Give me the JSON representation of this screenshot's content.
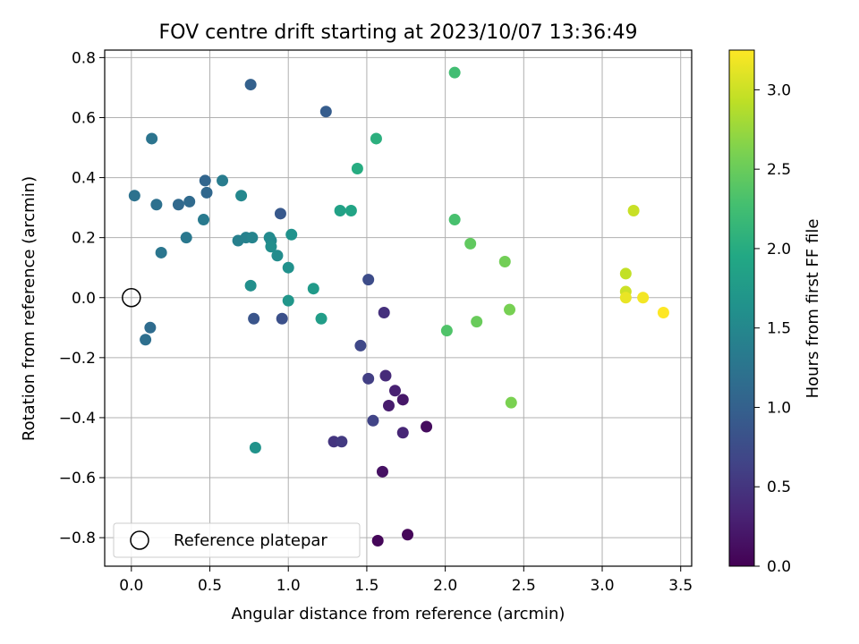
{
  "chart_data": {
    "type": "scatter",
    "title": "FOV centre drift starting at 2023/10/07 13:36:49",
    "xlabel": "Angular distance from reference (arcmin)",
    "ylabel": "Rotation from reference (arcmin)",
    "xlim": [
      -0.17,
      3.57
    ],
    "ylim": [
      -0.895,
      0.825
    ],
    "xticks": [
      0.0,
      0.5,
      1.0,
      1.5,
      2.0,
      2.5,
      3.0,
      3.5
    ],
    "xtick_labels": [
      "0.0",
      "0.5",
      "1.0",
      "1.5",
      "2.0",
      "2.5",
      "3.0",
      "3.5"
    ],
    "yticks": [
      -0.8,
      -0.6,
      -0.4,
      -0.2,
      0.0,
      0.2,
      0.4,
      0.6,
      0.8
    ],
    "ytick_labels": [
      "−0.8",
      "−0.6",
      "−0.4",
      "−0.2",
      "0.0",
      "0.2",
      "0.4",
      "0.6",
      "0.8"
    ],
    "grid": true,
    "colormap": "viridis",
    "colorbar": {
      "label": "Hours from first FF file",
      "range": [
        0.0,
        3.25
      ],
      "ticks": [
        0.0,
        0.5,
        1.0,
        1.5,
        2.0,
        2.5,
        3.0
      ],
      "tick_labels": [
        "0.0",
        "0.5",
        "1.0",
        "1.5",
        "2.0",
        "2.5",
        "3.0"
      ]
    },
    "legend": {
      "position": "lower-left",
      "label": "Reference platepar"
    },
    "reference_point": {
      "x": 0.0,
      "y": 0.0
    },
    "points": [
      {
        "x": 1.57,
        "y": -0.81,
        "c": 0.05
      },
      {
        "x": 1.76,
        "y": -0.79,
        "c": 0.05
      },
      {
        "x": 1.88,
        "y": -0.43,
        "c": 0.1
      },
      {
        "x": 1.6,
        "y": -0.58,
        "c": 0.15
      },
      {
        "x": 1.73,
        "y": -0.34,
        "c": 0.2
      },
      {
        "x": 1.64,
        "y": -0.36,
        "c": 0.25
      },
      {
        "x": 1.68,
        "y": -0.31,
        "c": 0.3
      },
      {
        "x": 1.73,
        "y": -0.45,
        "c": 0.35
      },
      {
        "x": 1.62,
        "y": -0.26,
        "c": 0.4
      },
      {
        "x": 1.61,
        "y": -0.05,
        "c": 0.45
      },
      {
        "x": 1.29,
        "y": -0.48,
        "c": 0.5
      },
      {
        "x": 1.34,
        "y": -0.48,
        "c": 0.55
      },
      {
        "x": 1.51,
        "y": -0.27,
        "c": 0.6
      },
      {
        "x": 1.54,
        "y": -0.41,
        "c": 0.65
      },
      {
        "x": 1.46,
        "y": -0.16,
        "c": 0.7
      },
      {
        "x": 1.51,
        "y": 0.06,
        "c": 0.75
      },
      {
        "x": 0.96,
        "y": -0.07,
        "c": 0.8
      },
      {
        "x": 0.78,
        "y": -0.07,
        "c": 0.85
      },
      {
        "x": 0.95,
        "y": 0.28,
        "c": 0.9
      },
      {
        "x": 1.24,
        "y": 0.62,
        "c": 0.95
      },
      {
        "x": 0.76,
        "y": 0.71,
        "c": 1.0
      },
      {
        "x": 0.47,
        "y": 0.39,
        "c": 1.05
      },
      {
        "x": 0.48,
        "y": 0.35,
        "c": 1.08
      },
      {
        "x": 0.3,
        "y": 0.31,
        "c": 1.1
      },
      {
        "x": 0.37,
        "y": 0.32,
        "c": 1.12
      },
      {
        "x": 0.12,
        "y": -0.1,
        "c": 1.15
      },
      {
        "x": 0.09,
        "y": -0.14,
        "c": 1.18
      },
      {
        "x": 0.16,
        "y": 0.31,
        "c": 1.2
      },
      {
        "x": 0.02,
        "y": 0.34,
        "c": 1.22
      },
      {
        "x": 0.13,
        "y": 0.53,
        "c": 1.25
      },
      {
        "x": 0.19,
        "y": 0.15,
        "c": 1.28
      },
      {
        "x": 0.35,
        "y": 0.2,
        "c": 1.3
      },
      {
        "x": 0.46,
        "y": 0.26,
        "c": 1.32
      },
      {
        "x": 0.58,
        "y": 0.39,
        "c": 1.35
      },
      {
        "x": 0.68,
        "y": 0.19,
        "c": 1.4
      },
      {
        "x": 0.73,
        "y": 0.2,
        "c": 1.42
      },
      {
        "x": 0.77,
        "y": 0.2,
        "c": 1.45
      },
      {
        "x": 0.7,
        "y": 0.34,
        "c": 1.5
      },
      {
        "x": 0.89,
        "y": 0.19,
        "c": 1.52
      },
      {
        "x": 0.88,
        "y": 0.2,
        "c": 1.54
      },
      {
        "x": 0.93,
        "y": 0.14,
        "c": 1.56
      },
      {
        "x": 0.89,
        "y": 0.17,
        "c": 1.58
      },
      {
        "x": 0.76,
        "y": 0.04,
        "c": 1.6
      },
      {
        "x": 1.0,
        "y": 0.1,
        "c": 1.62
      },
      {
        "x": 1.02,
        "y": 0.21,
        "c": 1.64
      },
      {
        "x": 0.79,
        "y": -0.5,
        "c": 1.66
      },
      {
        "x": 1.0,
        "y": -0.01,
        "c": 1.7
      },
      {
        "x": 1.16,
        "y": 0.03,
        "c": 1.75
      },
      {
        "x": 1.21,
        "y": -0.07,
        "c": 1.8
      },
      {
        "x": 1.33,
        "y": 0.29,
        "c": 1.85
      },
      {
        "x": 1.4,
        "y": 0.29,
        "c": 1.9
      },
      {
        "x": 1.44,
        "y": 0.43,
        "c": 2.0
      },
      {
        "x": 1.56,
        "y": 0.53,
        "c": 2.05
      },
      {
        "x": 2.06,
        "y": 0.75,
        "c": 2.25
      },
      {
        "x": 2.06,
        "y": 0.26,
        "c": 2.3
      },
      {
        "x": 2.01,
        "y": -0.11,
        "c": 2.35
      },
      {
        "x": 2.16,
        "y": 0.18,
        "c": 2.45
      },
      {
        "x": 2.2,
        "y": -0.08,
        "c": 2.5
      },
      {
        "x": 2.38,
        "y": 0.12,
        "c": 2.55
      },
      {
        "x": 2.41,
        "y": -0.04,
        "c": 2.58
      },
      {
        "x": 2.42,
        "y": -0.35,
        "c": 2.6
      },
      {
        "x": 3.15,
        "y": 0.08,
        "c": 2.95
      },
      {
        "x": 3.2,
        "y": 0.29,
        "c": 2.98
      },
      {
        "x": 3.15,
        "y": 0.02,
        "c": 3.0
      },
      {
        "x": 3.15,
        "y": 0.0,
        "c": 3.15
      },
      {
        "x": 3.26,
        "y": 0.0,
        "c": 3.2
      },
      {
        "x": 3.39,
        "y": -0.05,
        "c": 3.25
      }
    ]
  }
}
